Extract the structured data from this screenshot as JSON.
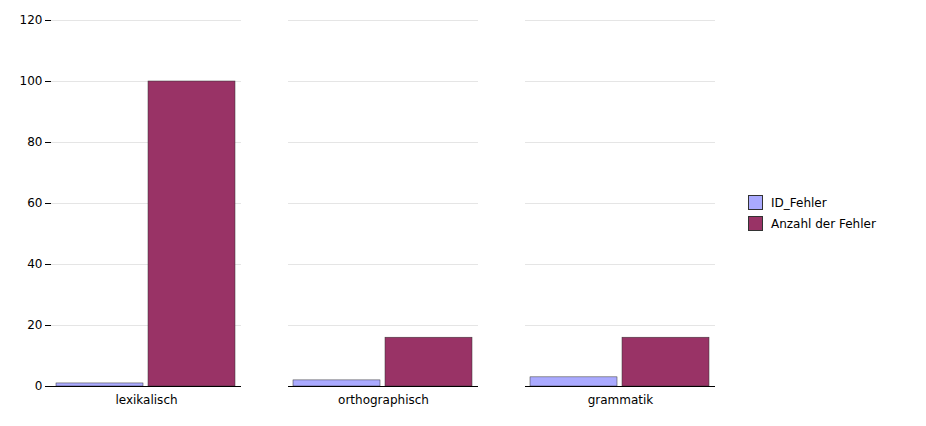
{
  "chart_data": {
    "type": "bar",
    "categories": [
      "lexikalisch",
      "orthographisch",
      "grammatik"
    ],
    "series": [
      {
        "name": "ID_Fehler",
        "color": "#aaaaff",
        "values": [
          1,
          2,
          3
        ]
      },
      {
        "name": "Anzahl der Fehler",
        "color": "#993366",
        "values": [
          100,
          16,
          16
        ]
      }
    ],
    "ylim": [
      0,
      120
    ],
    "yticks": [
      0,
      20,
      40,
      60,
      80,
      100,
      120
    ],
    "grid": true,
    "legend": "right"
  }
}
